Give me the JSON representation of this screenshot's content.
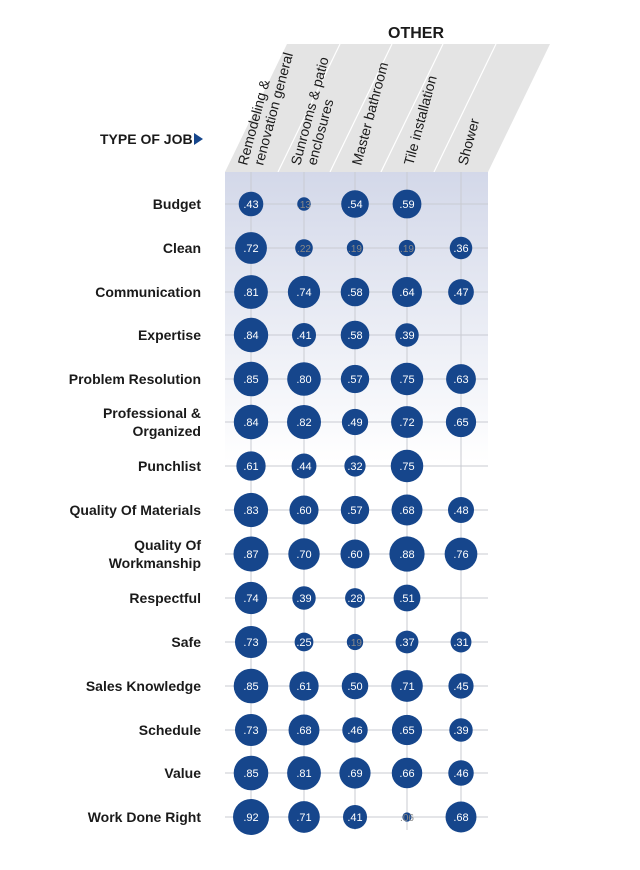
{
  "chart_data": {
    "type": "bubble matrix",
    "group_label": "OTHER",
    "axis_label": "TYPE OF JOB",
    "columns": [
      {
        "lines": [
          "Remodeling &",
          "renovation general"
        ]
      },
      {
        "lines": [
          "Sunrooms & patio",
          "enclosures"
        ]
      },
      {
        "lines": [
          "Master bathroom"
        ]
      },
      {
        "lines": [
          "Tile installation"
        ]
      },
      {
        "lines": [
          "Shower"
        ]
      }
    ],
    "rows": [
      {
        "lines": [
          "Budget"
        ],
        "values": [
          0.43,
          0.13,
          0.54,
          0.59,
          null
        ]
      },
      {
        "lines": [
          "Clean"
        ],
        "values": [
          0.72,
          0.22,
          0.19,
          0.19,
          0.36
        ]
      },
      {
        "lines": [
          "Communication"
        ],
        "values": [
          0.81,
          0.74,
          0.58,
          0.64,
          0.47
        ]
      },
      {
        "lines": [
          "Expertise"
        ],
        "values": [
          0.84,
          0.41,
          0.58,
          0.39,
          null
        ]
      },
      {
        "lines": [
          "Problem Resolution"
        ],
        "values": [
          0.85,
          0.8,
          0.57,
          0.75,
          0.63
        ]
      },
      {
        "lines": [
          "Professional &",
          "Organized"
        ],
        "values": [
          0.84,
          0.82,
          0.49,
          0.72,
          0.65
        ]
      },
      {
        "lines": [
          "Punchlist"
        ],
        "values": [
          0.61,
          0.44,
          0.32,
          0.75,
          null
        ]
      },
      {
        "lines": [
          "Quality Of Materials"
        ],
        "values": [
          0.83,
          0.6,
          0.57,
          0.68,
          0.48
        ]
      },
      {
        "lines": [
          "Quality Of",
          "Workmanship"
        ],
        "values": [
          0.87,
          0.7,
          0.6,
          0.88,
          0.76
        ]
      },
      {
        "lines": [
          "Respectful"
        ],
        "values": [
          0.74,
          0.39,
          0.28,
          0.51,
          null
        ]
      },
      {
        "lines": [
          "Safe"
        ],
        "values": [
          0.73,
          0.25,
          0.19,
          0.37,
          0.31
        ]
      },
      {
        "lines": [
          "Sales Knowledge"
        ],
        "values": [
          0.85,
          0.61,
          0.5,
          0.71,
          0.45
        ]
      },
      {
        "lines": [
          "Schedule"
        ],
        "values": [
          0.73,
          0.68,
          0.46,
          0.65,
          0.39
        ]
      },
      {
        "lines": [
          "Value"
        ],
        "values": [
          0.85,
          0.81,
          0.69,
          0.66,
          0.46
        ]
      },
      {
        "lines": [
          "Work Done Right"
        ],
        "values": [
          0.92,
          0.71,
          0.41,
          0.06,
          0.68
        ]
      }
    ],
    "colors": {
      "bubble": "#16468c",
      "bubble_label": "#ffffff",
      "small_label": "#888888",
      "text": "#1a1a1a",
      "header_fill": "#e4e4e4",
      "gradient_top": "#d3d8e9",
      "grid": "#c9cbd2",
      "arrow": "#16468c"
    }
  }
}
